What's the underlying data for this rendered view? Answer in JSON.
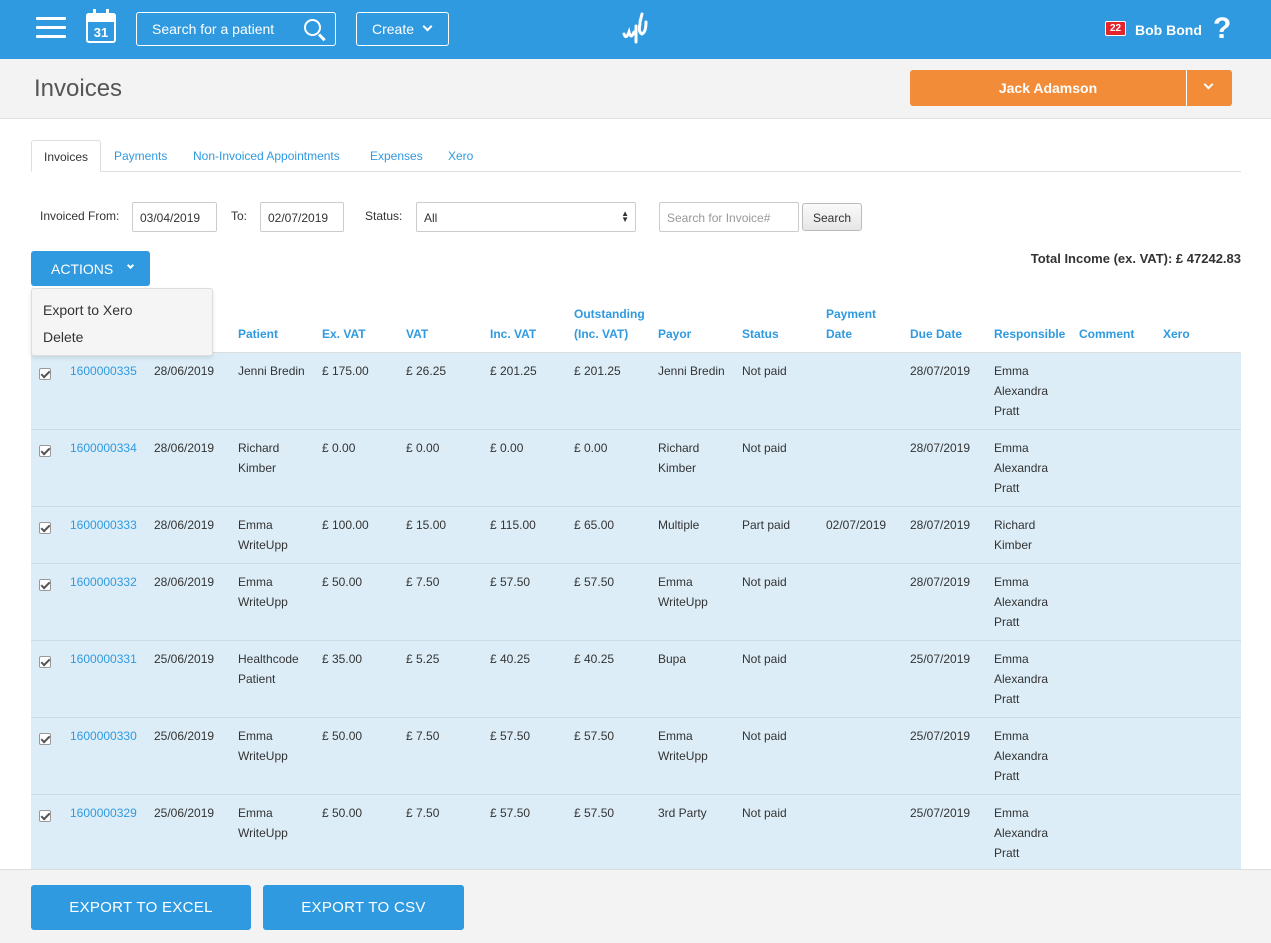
{
  "topbar": {
    "calendar_day": "31",
    "search_placeholder": "Search for a patient",
    "create_label": "Create",
    "notification_count": "22",
    "user_name": "Bob Bond",
    "help_label": "?"
  },
  "header": {
    "title": "Invoices",
    "practitioner": "Jack Adamson"
  },
  "tabs": [
    "Invoices",
    "Payments",
    "Non-Invoiced Appointments",
    "Expenses",
    "Xero"
  ],
  "filters": {
    "from_label": "Invoiced From:",
    "from_value": "03/04/2019",
    "to_label": "To:",
    "to_value": "02/07/2019",
    "status_label": "Status:",
    "status_value": "All",
    "invoice_search_placeholder": "Search for Invoice#",
    "search_button": "Search"
  },
  "actions": {
    "label": "ACTIONS",
    "menu": [
      "Export to Xero",
      "Delete"
    ]
  },
  "total_income": "Total Income (ex. VAT): £ 47242.83",
  "table": {
    "headers": {
      "patient": "Patient",
      "exvat": "Ex. VAT",
      "vat": "VAT",
      "incvat": "Inc. VAT",
      "outstanding_1": "Outstanding",
      "outstanding_2": "(Inc. VAT)",
      "payor": "Payor",
      "status": "Status",
      "paydate_1": "Payment",
      "paydate_2": "Date",
      "duedate": "Due Date",
      "responsible": "Responsible",
      "comment": "Comment",
      "xero": "Xero"
    },
    "rows": [
      {
        "invoice": "1600000335",
        "date": "28/06/2019",
        "patient": [
          "Jenni Bredin"
        ],
        "exvat": "£ 175.00",
        "vat": "£ 26.25",
        "incvat": "£ 201.25",
        "outstanding": "£ 201.25",
        "payor": [
          "Jenni Bredin"
        ],
        "status": "Not paid",
        "paydate": "",
        "duedate": "28/07/2019",
        "responsible": [
          "Emma",
          "Alexandra",
          "Pratt"
        ]
      },
      {
        "invoice": "1600000334",
        "date": "28/06/2019",
        "patient": [
          "Richard",
          "Kimber"
        ],
        "exvat": "£ 0.00",
        "vat": "£ 0.00",
        "incvat": "£ 0.00",
        "outstanding": "£ 0.00",
        "payor": [
          "Richard",
          "Kimber"
        ],
        "status": "Not paid",
        "paydate": "",
        "duedate": "28/07/2019",
        "responsible": [
          "Emma",
          "Alexandra",
          "Pratt"
        ]
      },
      {
        "invoice": "1600000333",
        "date": "28/06/2019",
        "patient": [
          "Emma",
          "WriteUpp"
        ],
        "exvat": "£ 100.00",
        "vat": "£ 15.00",
        "incvat": "£ 115.00",
        "outstanding": "£ 65.00",
        "payor": [
          "Multiple"
        ],
        "status": "Part paid",
        "paydate": "02/07/2019",
        "duedate": "28/07/2019",
        "responsible": [
          "Richard",
          "Kimber"
        ]
      },
      {
        "invoice": "1600000332",
        "date": "28/06/2019",
        "patient": [
          "Emma",
          "WriteUpp"
        ],
        "exvat": "£ 50.00",
        "vat": "£ 7.50",
        "incvat": "£ 57.50",
        "outstanding": "£ 57.50",
        "payor": [
          "Emma",
          "WriteUpp"
        ],
        "status": "Not paid",
        "paydate": "",
        "duedate": "28/07/2019",
        "responsible": [
          "Emma",
          "Alexandra",
          "Pratt"
        ]
      },
      {
        "invoice": "1600000331",
        "date": "25/06/2019",
        "patient": [
          "Healthcode",
          "Patient"
        ],
        "exvat": "£ 35.00",
        "vat": "£ 5.25",
        "incvat": "£ 40.25",
        "outstanding": "£ 40.25",
        "payor": [
          "Bupa"
        ],
        "status": "Not paid",
        "paydate": "",
        "duedate": "25/07/2019",
        "responsible": [
          "Emma",
          "Alexandra",
          "Pratt"
        ]
      },
      {
        "invoice": "1600000330",
        "date": "25/06/2019",
        "patient": [
          "Emma",
          "WriteUpp"
        ],
        "exvat": "£ 50.00",
        "vat": "£ 7.50",
        "incvat": "£ 57.50",
        "outstanding": "£ 57.50",
        "payor": [
          "Emma",
          "WriteUpp"
        ],
        "status": "Not paid",
        "paydate": "",
        "duedate": "25/07/2019",
        "responsible": [
          "Emma",
          "Alexandra",
          "Pratt"
        ]
      },
      {
        "invoice": "1600000329",
        "date": "25/06/2019",
        "patient": [
          "Emma",
          "WriteUpp"
        ],
        "exvat": "£ 50.00",
        "vat": "£ 7.50",
        "incvat": "£ 57.50",
        "outstanding": "£ 57.50",
        "payor": [
          "3rd Party"
        ],
        "status": "Not paid",
        "paydate": "",
        "duedate": "25/07/2019",
        "responsible": [
          "Emma",
          "Alexandra",
          "Pratt"
        ]
      }
    ]
  },
  "footer": {
    "export_excel": "EXPORT TO EXCEL",
    "export_csv": "EXPORT TO CSV"
  },
  "colors": {
    "brand_blue": "#2f9ae0",
    "practitioner_orange": "#f28c38",
    "row_bg": "#dcedf7",
    "badge_red": "#e3242b"
  }
}
